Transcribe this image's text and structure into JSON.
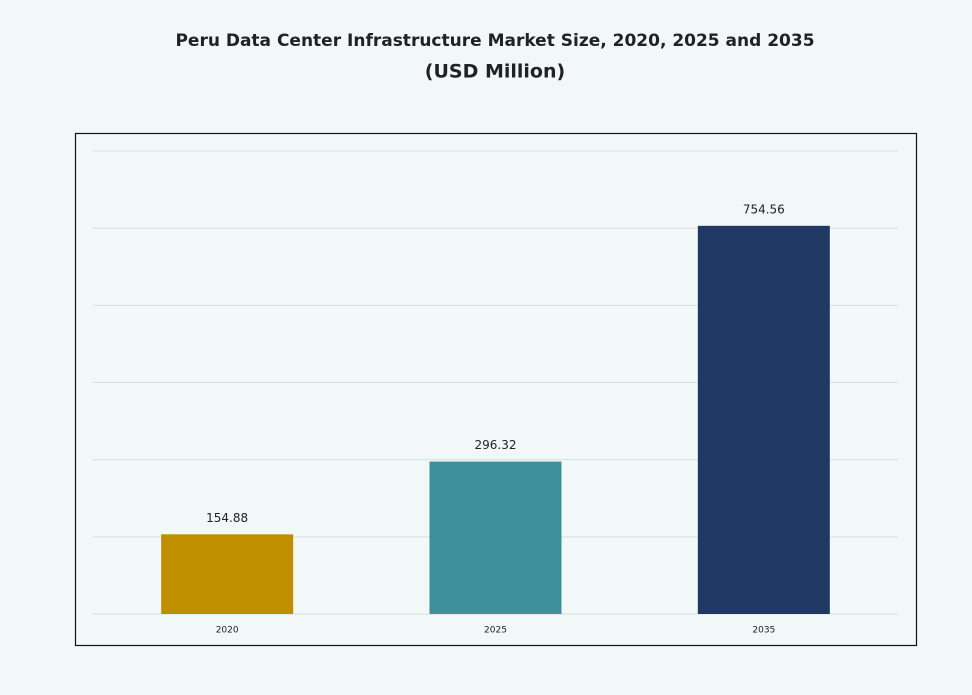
{
  "chart_data": {
    "type": "bar",
    "title": "Peru Data Center Infrastructure Market Size, 2020, 2025 and 2035",
    "subtitle": "(USD Million)",
    "categories": [
      "2020",
      "2025",
      "2035"
    ],
    "values": [
      154.88,
      296.32,
      754.56
    ],
    "colors": [
      "#bf8f00",
      "#3d8f99",
      "#203864"
    ],
    "ylim": [
      0,
      900
    ],
    "yticks": [
      0,
      150,
      300,
      450,
      600,
      750,
      900
    ],
    "grid": true
  }
}
